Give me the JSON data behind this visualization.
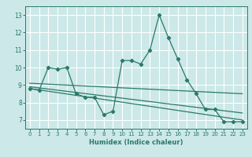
{
  "title": "",
  "xlabel": "Humidex (Indice chaleur)",
  "bg_color": "#cce8e8",
  "grid_color": "#ffffff",
  "line_color": "#2a7a6a",
  "xlim": [
    -0.5,
    23.5
  ],
  "ylim": [
    6.5,
    13.5
  ],
  "yticks": [
    7,
    8,
    9,
    10,
    11,
    12,
    13
  ],
  "xticks": [
    0,
    1,
    2,
    3,
    4,
    5,
    6,
    7,
    8,
    9,
    10,
    11,
    12,
    13,
    14,
    15,
    16,
    17,
    18,
    19,
    20,
    21,
    22,
    23
  ],
  "series1_x": [
    0,
    1,
    2,
    3,
    4,
    5,
    6,
    7,
    8,
    9,
    10,
    11,
    12,
    13,
    14,
    15,
    16,
    17,
    18,
    19,
    20,
    21,
    22,
    23
  ],
  "series1_y": [
    8.8,
    8.7,
    10.0,
    9.9,
    10.0,
    8.5,
    8.3,
    8.3,
    7.3,
    7.5,
    10.4,
    10.4,
    10.2,
    11.0,
    13.0,
    11.7,
    10.5,
    9.3,
    8.5,
    7.6,
    7.6,
    6.9,
    6.9,
    6.9
  ],
  "trend1_x": [
    0,
    23
  ],
  "trend1_y": [
    8.8,
    7.0
  ],
  "trend2_x": [
    0,
    23
  ],
  "trend2_y": [
    8.9,
    7.4
  ],
  "trend3_x": [
    0,
    23
  ],
  "trend3_y": [
    9.1,
    8.5
  ]
}
